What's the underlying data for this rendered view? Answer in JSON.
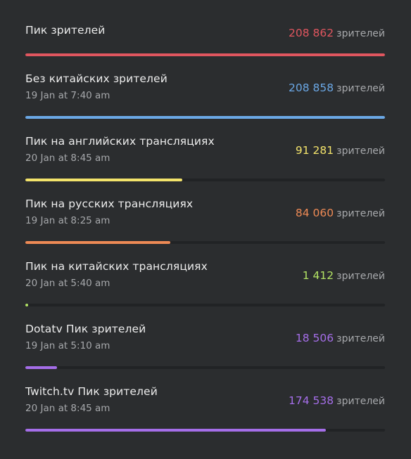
{
  "unit_label": "зрителей",
  "rows": [
    {
      "title": "Пик зрителей",
      "date": "",
      "value": "208 862",
      "progress": 1.0,
      "color": "#e0565f"
    },
    {
      "title": "Без китайских зрителей",
      "date": "19 Jan at 7:40 am",
      "value": "208 858",
      "progress": 1.0,
      "color": "#6ba8e6"
    },
    {
      "title": "Пик на английских трансляциях",
      "date": "20 Jan at 8:45 am",
      "value": "91 281",
      "progress": 0.437,
      "color": "#f3e36b"
    },
    {
      "title": "Пик на русских трансляциях",
      "date": "19 Jan at 8:25 am",
      "value": "84 060",
      "progress": 0.403,
      "color": "#ee8a55"
    },
    {
      "title": "Пик на китайских трансляциях",
      "date": "20 Jan at 5:40 am",
      "value": "1 412",
      "progress": 0.007,
      "color": "#b2e364"
    },
    {
      "title": "Dotatv Пик зрителей",
      "date": "19 Jan at 5:10 am",
      "value": "18 506",
      "progress": 0.089,
      "color": "#a56ee9"
    },
    {
      "title": "Twitch.tv Пик зрителей",
      "date": "20 Jan at 8:45 am",
      "value": "174 538",
      "progress": 0.836,
      "color": "#a56ee9"
    }
  ]
}
